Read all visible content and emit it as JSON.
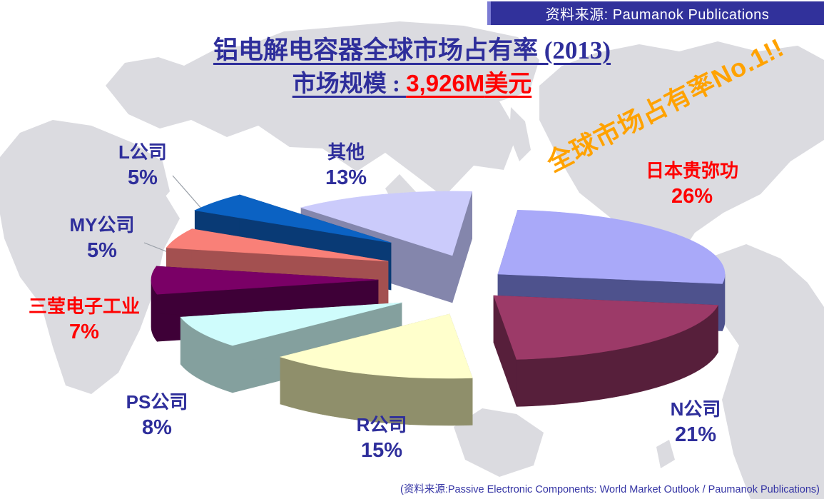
{
  "banner": {
    "label": "资料来源:  Paumanok Publications",
    "bg": "#31319B"
  },
  "title": {
    "line1": "铝电解电容器全球市场占有率 (2013)",
    "line2_label": "市场规模 : ",
    "line2_value": "3,926M",
    "line2_unit": "美元",
    "color": "#2E2E9B",
    "value_color": "#FF0000"
  },
  "stamp": {
    "text": "全球市场占有率No.1!!",
    "color": "#FFA200"
  },
  "footer": {
    "text": "(资料来源:Passive Electronic Components: World Market Outlook / Paumanok Publications)"
  },
  "chart_data": {
    "type": "pie",
    "title": "铝电解电容器全球市场占有率 (2013)",
    "subtitle": "市场规模 : 3,926M美元",
    "year": 2013,
    "market_size_musd": 3926,
    "unit": "%",
    "style": "3d-exploded",
    "legend_position": "around",
    "slices": [
      {
        "label": "日本贵弥功",
        "value": 26,
        "pct": "26%",
        "label_color": "#FF0000",
        "top": "#A9A9F9",
        "side": "#4E528D"
      },
      {
        "label": "N公司",
        "value": 21,
        "pct": "21%",
        "label_color": "#2E2E9B",
        "top": "#9C3A68",
        "side": "#571F3B"
      },
      {
        "label": "R公司",
        "value": 15,
        "pct": "15%",
        "label_color": "#2E2E9B",
        "top": "#FFFFCC",
        "side": "#8F8F6B"
      },
      {
        "label": "PS公司",
        "value": 8,
        "pct": "8%",
        "label_color": "#2E2E9B",
        "top": "#CFFCFC",
        "side": "#84A09E"
      },
      {
        "label": "三莹电子工业",
        "value": 7,
        "pct": "7%",
        "label_color": "#FF0000",
        "top": "#7A0066",
        "side": "#3E0037"
      },
      {
        "label": "MY公司",
        "value": 5,
        "pct": "5%",
        "label_color": "#2E2E9B",
        "top": "#F98078",
        "side": "#A35050"
      },
      {
        "label": "L公司",
        "value": 5,
        "pct": "5%",
        "label_color": "#2E2E9B",
        "top": "#0B62C3",
        "side": "#093A75"
      },
      {
        "label": "其他",
        "value": 13,
        "pct": "13%",
        "label_color": "#2E2E9B",
        "top": "#CBCBFB",
        "side": "#8486AC"
      }
    ],
    "source_banner": "资料来源:  Paumanok Publications",
    "source_footnote": "(资料来源:Passive Electronic Components: World Market Outlook / Paumanok Publications)"
  }
}
